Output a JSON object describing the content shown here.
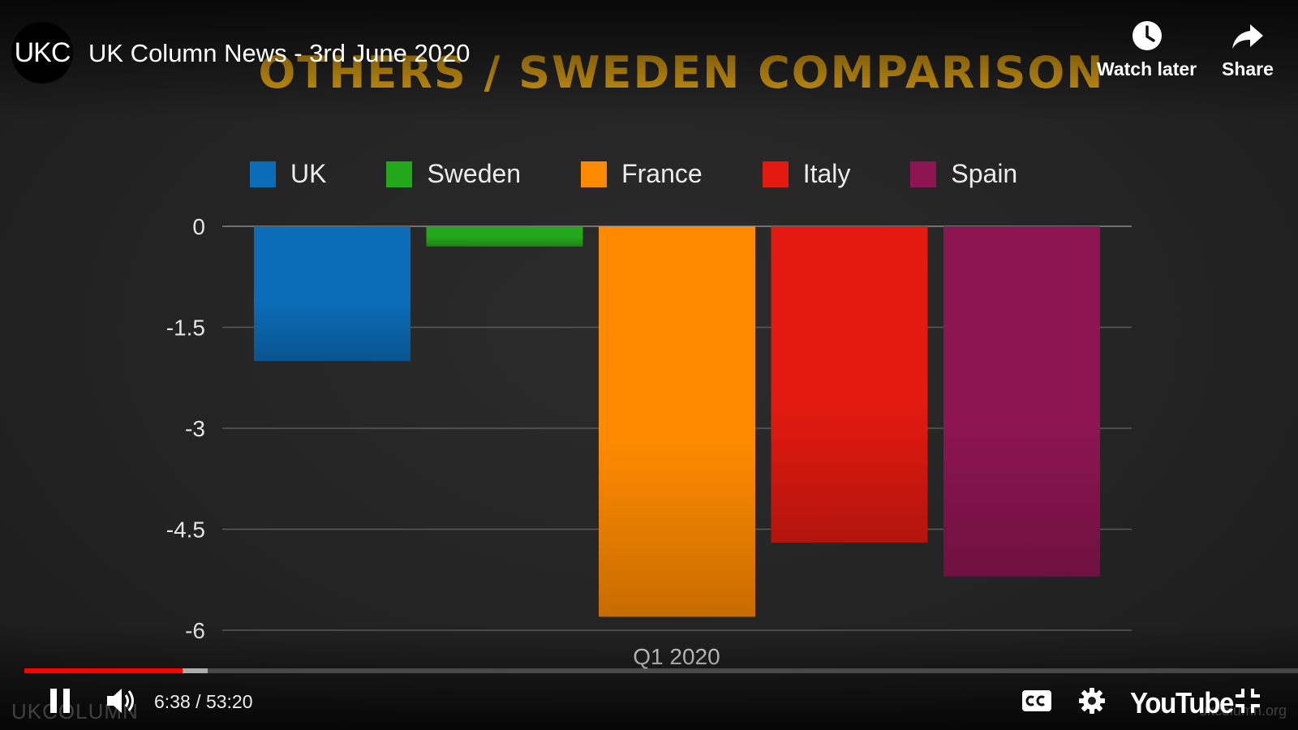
{
  "header": {
    "channel_avatar_text": "UKC",
    "video_title": "UK Column News - 3rd June 2020",
    "watch_later_label": "Watch later",
    "share_label": "Share"
  },
  "slide": {
    "title": "OTHERS / SWEDEN COMPARISON"
  },
  "chart_data": {
    "type": "bar",
    "categories": [
      "Q1 2020"
    ],
    "series": [
      {
        "name": "UK",
        "values": [
          -2.0
        ],
        "color": "#0b6cb8"
      },
      {
        "name": "Sweden",
        "values": [
          -0.3
        ],
        "color": "#22a81a"
      },
      {
        "name": "France",
        "values": [
          -5.8
        ],
        "color": "#ff8a00"
      },
      {
        "name": "Italy",
        "values": [
          -4.7
        ],
        "color": "#e41a10"
      },
      {
        "name": "Spain",
        "values": [
          -5.2
        ],
        "color": "#8e1552"
      }
    ],
    "yticks": [
      "0",
      "-1.5",
      "-3",
      "-4.5",
      "-6"
    ],
    "ylim": [
      -6,
      0
    ],
    "title": "",
    "xlabel": "",
    "ylabel": "",
    "grid": true,
    "legend": "top"
  },
  "player": {
    "current_time": "6:38",
    "separator": "/",
    "duration": "53:20",
    "played_fraction": 0.1244,
    "buffered_fraction": 0.1439,
    "youtube_logo_text": "YouTube",
    "watermark_left": "UKCOLUMN",
    "watermark_right": "ukcolumn.org",
    "icons": {
      "pause": "pause-icon",
      "volume": "volume-icon",
      "captions": "captions-icon",
      "settings": "gear-icon",
      "exit_fullscreen": "exit-fullscreen-icon",
      "watch_later": "clock-icon",
      "share": "share-arrow-icon"
    }
  }
}
